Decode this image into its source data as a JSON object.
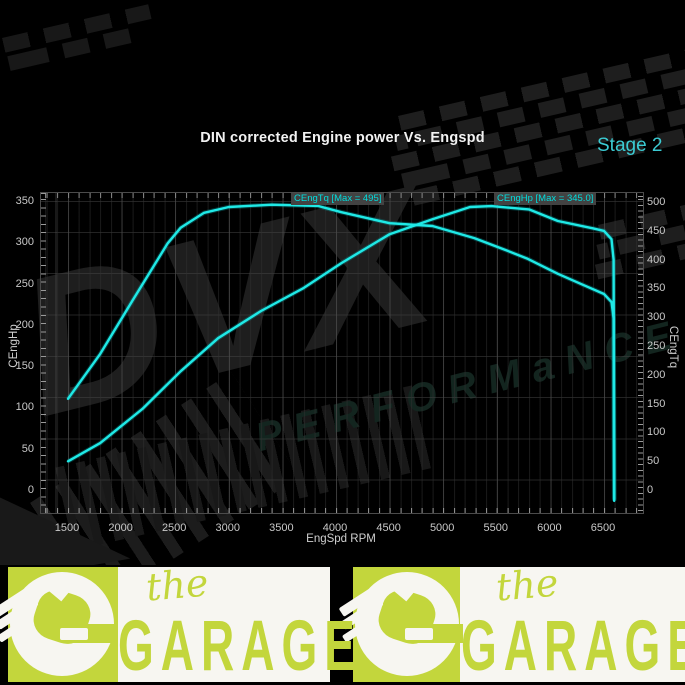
{
  "header": {
    "title": "DIN corrected Engine power Vs. Engspd",
    "stage_badge": "Stage 2",
    "stage_color": "#3bcad2"
  },
  "chart_data": {
    "type": "line",
    "title": "DIN corrected Engine power Vs. Engspd",
    "xlabel": "EngSpd RPM",
    "ylabel_left": "CEngHp",
    "ylabel_right": "CEngTq",
    "x_ticks": [
      "1500",
      "2000",
      "2500",
      "3000",
      "3500",
      "4000",
      "4500",
      "5000",
      "5500",
      "6000",
      "6500"
    ],
    "yleft_ticks": [
      "0",
      "50",
      "100",
      "150",
      "200",
      "250",
      "300",
      "350"
    ],
    "yright_ticks": [
      "0",
      "50",
      "100",
      "150",
      "200",
      "250",
      "300",
      "350",
      "400",
      "450",
      "500"
    ],
    "yleft_range": [
      0,
      350
    ],
    "yright_range": [
      0,
      500
    ],
    "x_range": [
      1500,
      6500
    ],
    "grid": true,
    "line_color": "#1fe9e6",
    "legend_position": "inline-peak-labels",
    "series": [
      {
        "name": "CEngTq",
        "axis": "right",
        "peak_label": "CEngTq [Max = 495]",
        "max": 495,
        "x": [
          1500,
          1800,
          2100,
          2430,
          2550,
          2770,
          3000,
          3400,
          3830,
          4050,
          4500,
          4900,
          5290,
          5600,
          5790,
          6070,
          6290,
          6500,
          6570,
          6590,
          6595
        ],
        "values": [
          160,
          238,
          330,
          430,
          457,
          483,
          493,
          497,
          495,
          484,
          465,
          460,
          439,
          417,
          403,
          377,
          359,
          342,
          328,
          300,
          -15
        ]
      },
      {
        "name": "CEngHp",
        "axis": "left",
        "peak_label": "CEngHp [Max = 345.0]",
        "max": 345.0,
        "x": [
          1500,
          1800,
          2200,
          2550,
          2900,
          3300,
          3700,
          4050,
          4500,
          4900,
          5250,
          5450,
          5800,
          6070,
          6400,
          6500,
          6570,
          6590,
          6595
        ],
        "values": [
          36,
          58,
          100,
          145,
          185,
          218,
          246,
          276,
          311,
          329,
          344,
          345,
          341,
          327,
          318,
          315,
          305,
          280,
          -12
        ]
      }
    ]
  },
  "watermark": {
    "word1": "DVX",
    "word2": "PERFORMaNCE"
  },
  "footer": {
    "lime": "#c3d63c",
    "units": [
      {
        "brand_script": "the",
        "brand_name": "GARAGE"
      },
      {
        "brand_script": "the",
        "brand_name": "GARAGE"
      }
    ]
  }
}
